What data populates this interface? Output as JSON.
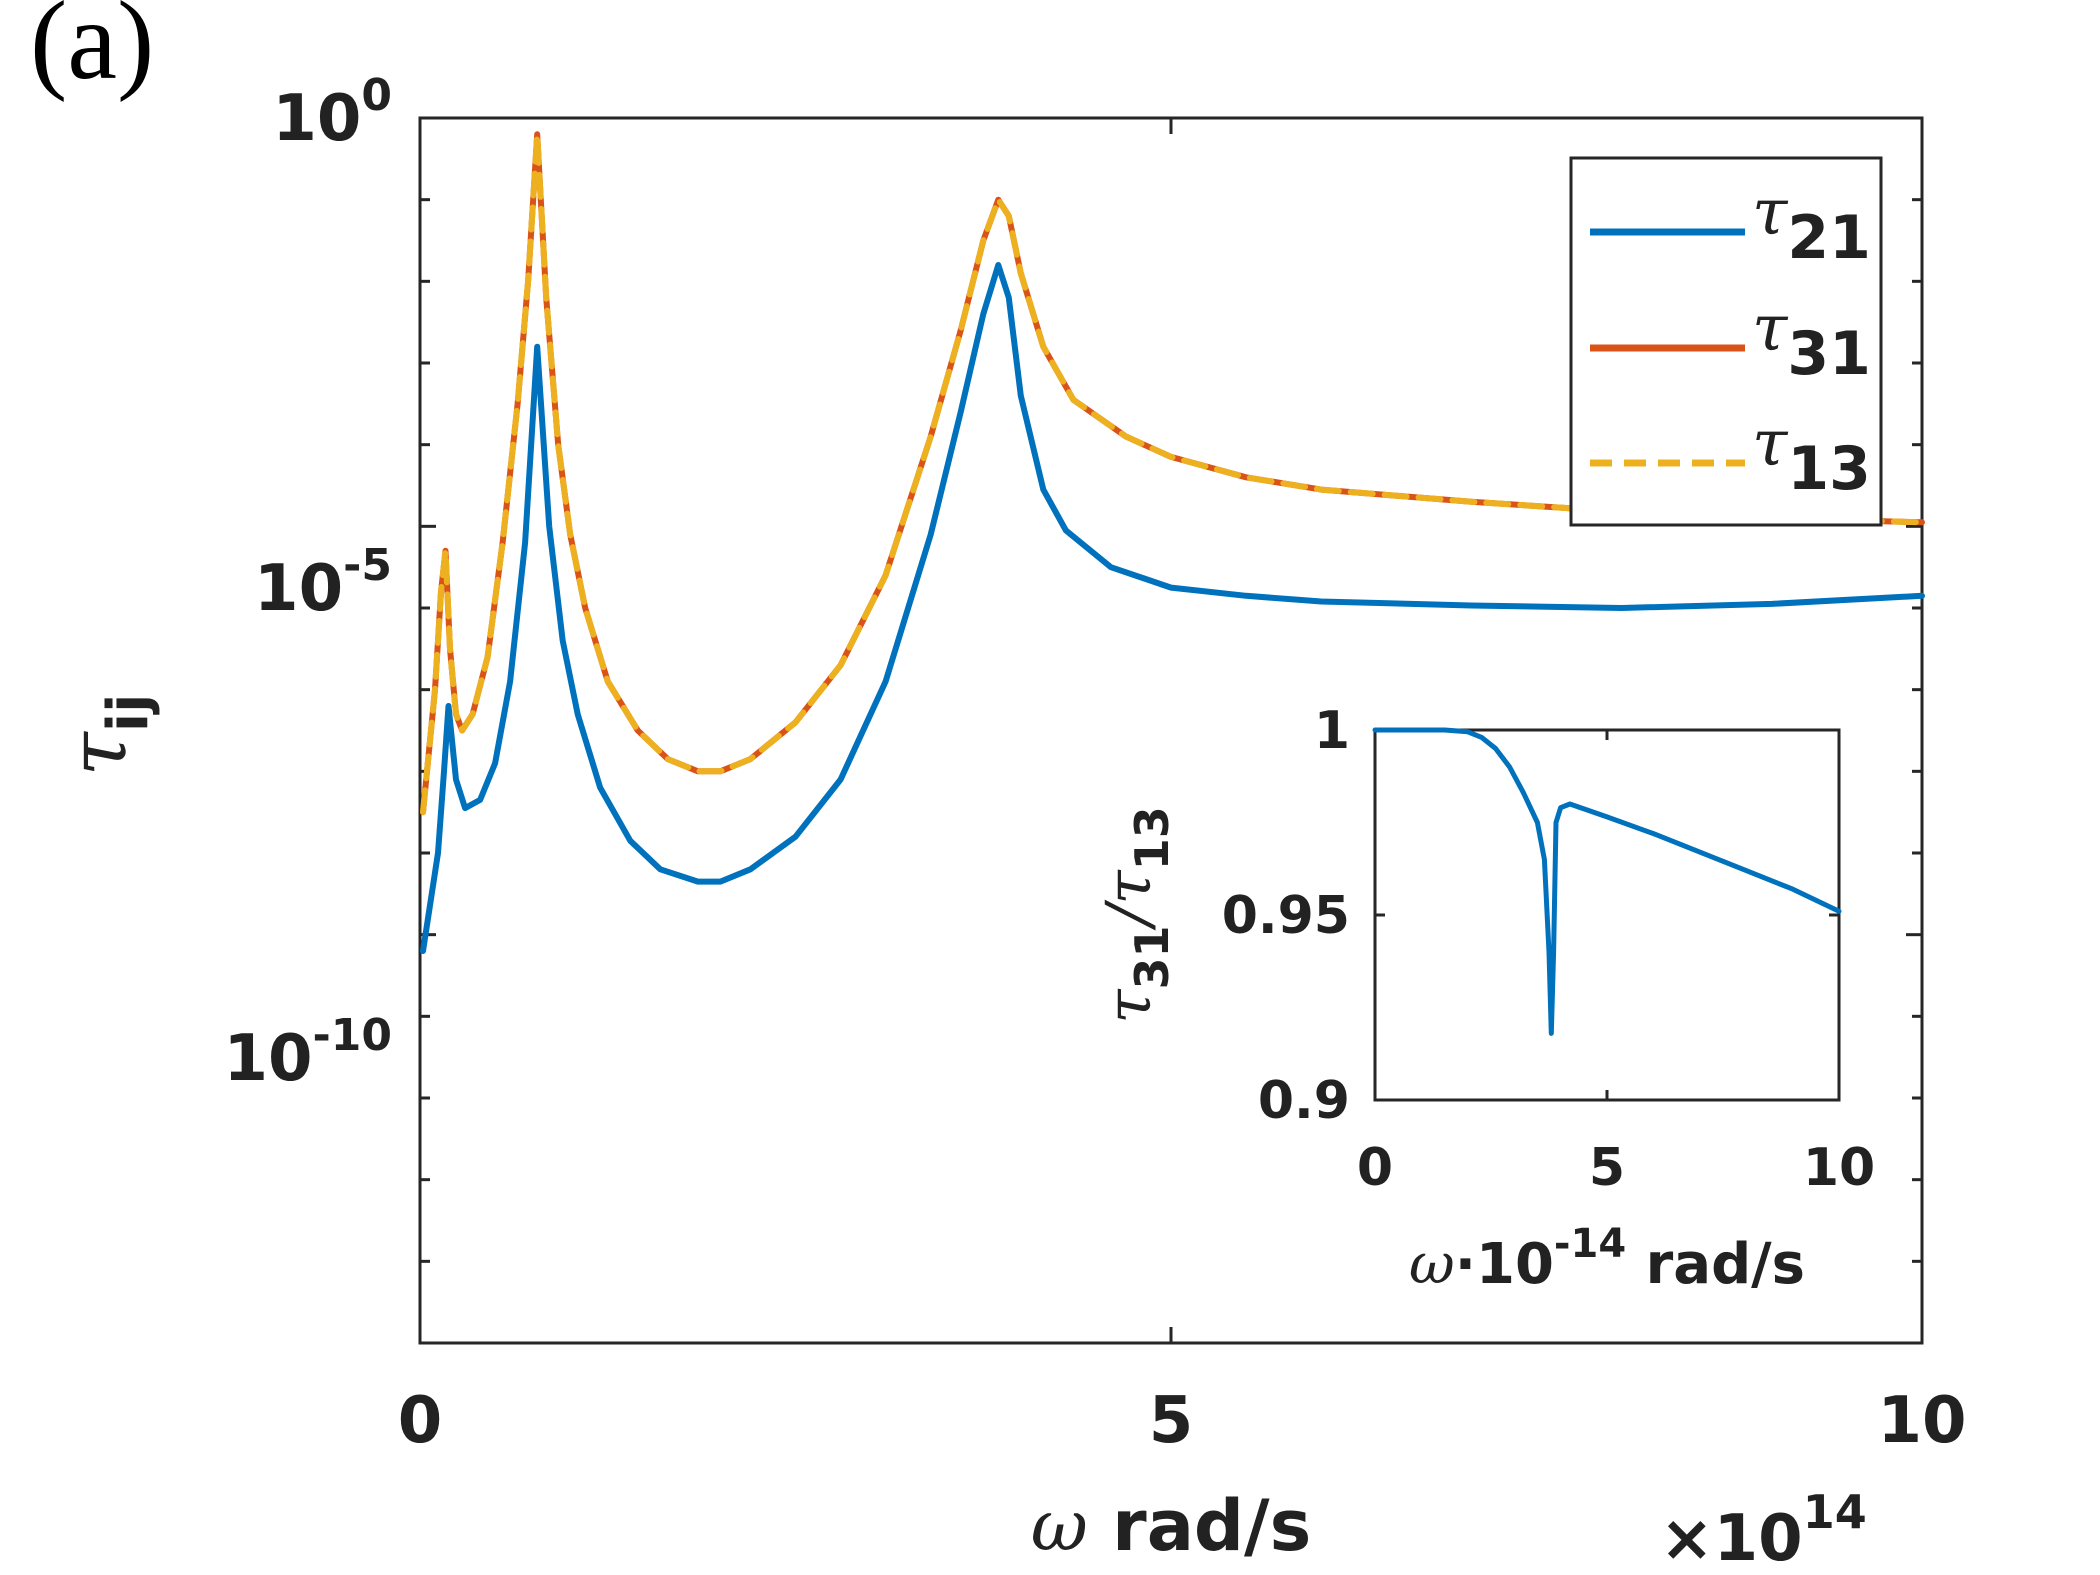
{
  "panel_label": "(a)",
  "chart_data": [
    {
      "type": "line",
      "title": "",
      "yscale": "log",
      "xlabel": {
        "symbol": "ω",
        "text": "rad/s"
      },
      "ylabel": {
        "symbol": "τ",
        "sub": "ij"
      },
      "xlim": [
        0,
        10
      ],
      "ylim_log10": [
        -15,
        0
      ],
      "x_multiplier": {
        "prefix": "×10",
        "exp": "14"
      },
      "xticks": [
        0,
        5,
        10
      ],
      "xtick_labels": [
        "0",
        "5",
        "10"
      ],
      "yticks_log10": [
        0,
        -5,
        -10
      ],
      "ytick_labels": [
        {
          "base": "10",
          "exp": "0"
        },
        {
          "base": "10",
          "exp": "-5"
        },
        {
          "base": "10",
          "exp": "-10"
        }
      ],
      "legend_position": "top-right",
      "series": [
        {
          "name": "τ21",
          "label_symbol": "τ",
          "label_sub": "21",
          "color": "#0072BD",
          "dash": "solid",
          "x": [
            0.02,
            0.12,
            0.16,
            0.19,
            0.24,
            0.3,
            0.4,
            0.5,
            0.6,
            0.7,
            0.78,
            0.86,
            0.95,
            1.05,
            1.2,
            1.4,
            1.6,
            1.85,
            2.0,
            2.2,
            2.5,
            2.8,
            3.1,
            3.4,
            3.6,
            3.75,
            3.85,
            3.92,
            4.0,
            4.15,
            4.3,
            4.6,
            5.0,
            5.5,
            6.0,
            7.0,
            8.0,
            9.0,
            10.0
          ],
          "log10_y": [
            -10.2,
            -9.0,
            -8.0,
            -7.2,
            -8.1,
            -8.45,
            -8.35,
            -7.9,
            -6.9,
            -5.2,
            -2.8,
            -5.0,
            -6.4,
            -7.3,
            -8.2,
            -8.85,
            -9.2,
            -9.35,
            -9.35,
            -9.2,
            -8.8,
            -8.1,
            -6.9,
            -5.1,
            -3.6,
            -2.4,
            -1.8,
            -2.2,
            -3.4,
            -4.55,
            -5.05,
            -5.5,
            -5.75,
            -5.85,
            -5.92,
            -5.97,
            -6.0,
            -5.95,
            -5.85
          ]
        },
        {
          "name": "τ31",
          "label_symbol": "τ",
          "label_sub": "31",
          "color": "#D95319",
          "dash": "solid",
          "x": [
            0.02,
            0.1,
            0.14,
            0.17,
            0.2,
            0.24,
            0.28,
            0.35,
            0.45,
            0.55,
            0.65,
            0.72,
            0.78,
            0.84,
            0.92,
            1.0,
            1.1,
            1.25,
            1.45,
            1.65,
            1.85,
            2.0,
            2.2,
            2.5,
            2.8,
            3.1,
            3.4,
            3.6,
            3.75,
            3.85,
            3.92,
            4.0,
            4.15,
            4.35,
            4.7,
            5.0,
            5.5,
            6.0,
            7.0,
            8.0,
            9.0,
            10.0
          ],
          "log10_y": [
            -8.5,
            -7.0,
            -5.8,
            -5.3,
            -6.5,
            -7.3,
            -7.5,
            -7.3,
            -6.6,
            -5.2,
            -3.5,
            -2.0,
            -0.2,
            -2.2,
            -4.0,
            -5.1,
            -6.0,
            -6.9,
            -7.5,
            -7.85,
            -8.0,
            -8.0,
            -7.85,
            -7.4,
            -6.7,
            -5.6,
            -3.9,
            -2.6,
            -1.5,
            -1.0,
            -1.2,
            -1.9,
            -2.8,
            -3.45,
            -3.9,
            -4.15,
            -4.4,
            -4.55,
            -4.7,
            -4.82,
            -4.9,
            -4.95
          ]
        },
        {
          "name": "τ13",
          "label_symbol": "τ",
          "label_sub": "13",
          "color": "#EDB120",
          "dash": "dashed",
          "x": [
            0.02,
            0.1,
            0.14,
            0.17,
            0.2,
            0.24,
            0.28,
            0.35,
            0.45,
            0.55,
            0.65,
            0.72,
            0.78,
            0.84,
            0.92,
            1.0,
            1.1,
            1.25,
            1.45,
            1.65,
            1.85,
            2.0,
            2.2,
            2.5,
            2.8,
            3.1,
            3.4,
            3.6,
            3.75,
            3.85,
            3.92,
            4.0,
            4.15,
            4.35,
            4.7,
            5.0,
            5.5,
            6.0,
            7.0,
            8.0,
            9.0,
            10.0
          ],
          "log10_y": [
            -8.5,
            -7.0,
            -5.8,
            -5.3,
            -6.5,
            -7.3,
            -7.5,
            -7.3,
            -6.6,
            -5.2,
            -3.5,
            -2.0,
            -0.2,
            -2.2,
            -4.0,
            -5.1,
            -6.0,
            -6.9,
            -7.5,
            -7.85,
            -8.0,
            -8.0,
            -7.85,
            -7.4,
            -6.7,
            -5.6,
            -3.9,
            -2.6,
            -1.5,
            -1.0,
            -1.2,
            -1.9,
            -2.8,
            -3.45,
            -3.9,
            -4.15,
            -4.4,
            -4.55,
            -4.7,
            -4.82,
            -4.9,
            -4.95
          ]
        }
      ]
    },
    {
      "type": "line",
      "role": "inset",
      "xlabel": {
        "symbol": "ω",
        "text_pre": "·10",
        "exp": "-14",
        "text_post": " rad/s"
      },
      "ylabel": {
        "symbol": "τ",
        "sub1": "31",
        "slash": "/",
        "sub2": "13"
      },
      "xlim": [
        0,
        10
      ],
      "ylim": [
        0.9,
        1
      ],
      "xticks": [
        0,
        5,
        10
      ],
      "xtick_labels": [
        "0",
        "5",
        "10"
      ],
      "yticks": [
        0.9,
        0.95,
        1
      ],
      "ytick_labels": [
        "0.9",
        "0.95",
        "1"
      ],
      "series": [
        {
          "name": "τ31/τ13",
          "color": "#0072BD",
          "x": [
            0,
            1.0,
            1.5,
            2.0,
            2.3,
            2.6,
            2.9,
            3.2,
            3.5,
            3.65,
            3.75,
            3.8,
            3.85,
            3.9,
            4.0,
            4.2,
            5.0,
            6.0,
            7.0,
            8.0,
            9.0,
            10.0
          ],
          "values": [
            1.0,
            1.0,
            1.0,
            0.9995,
            0.998,
            0.995,
            0.99,
            0.983,
            0.975,
            0.965,
            0.94,
            0.918,
            0.94,
            0.975,
            0.979,
            0.98,
            0.9765,
            0.972,
            0.967,
            0.962,
            0.957,
            0.951
          ]
        }
      ]
    }
  ]
}
